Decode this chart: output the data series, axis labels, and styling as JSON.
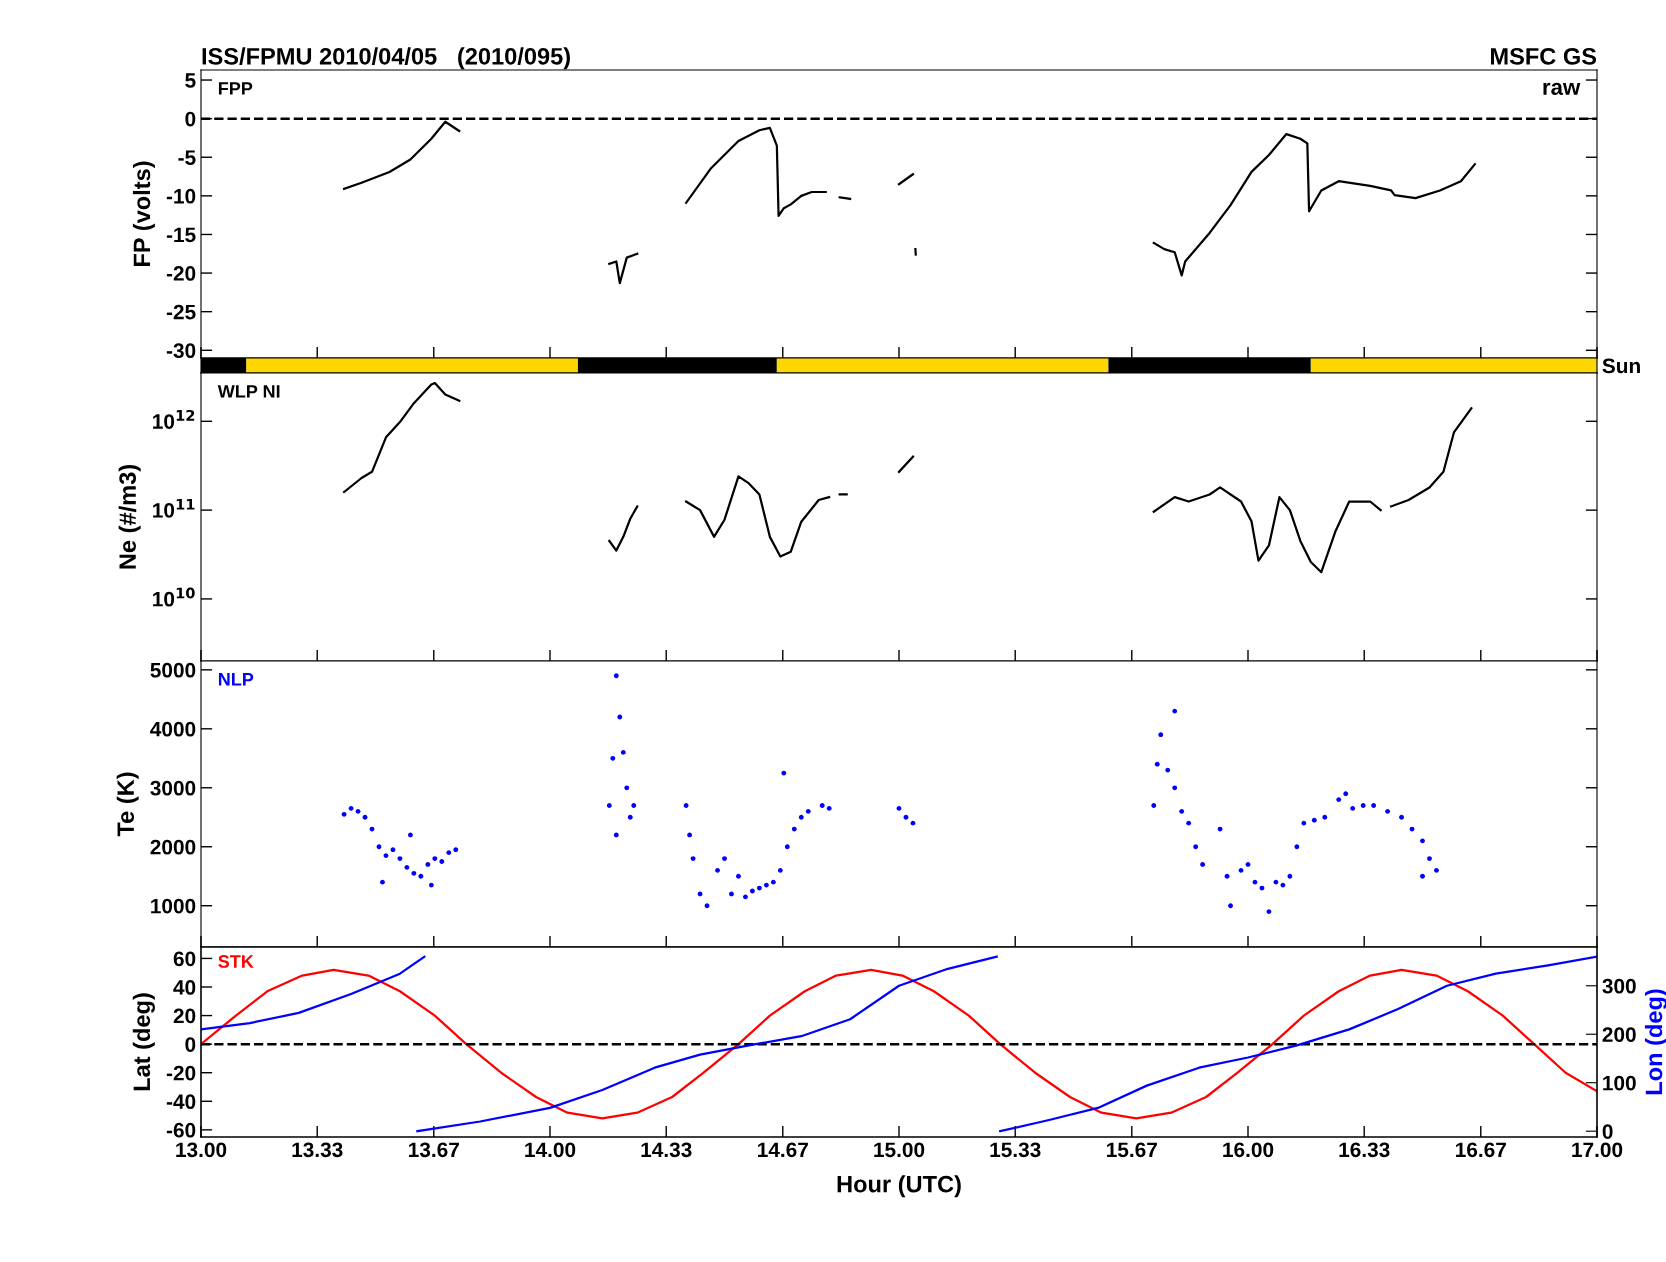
{
  "chart_data": [
    {
      "type": "line",
      "title": "ISS/FPMU 2010/04/05   (2010/095)",
      "subtitle": "MSFC GS",
      "ylabel": "FP (volts)",
      "annotations": [
        "FPP",
        "raw"
      ],
      "tick_labels": "y",
      "xlim": [
        13,
        17
      ],
      "xticks": [
        {
          "value": 13,
          "label": null
        },
        {
          "value": 13.333,
          "label": null
        },
        {
          "value": 13.667,
          "label": null
        },
        {
          "value": 14,
          "label": null
        },
        {
          "value": 14.333,
          "label": null
        },
        {
          "value": 14.667,
          "label": null
        },
        {
          "value": 15,
          "label": null
        },
        {
          "value": 15.333,
          "label": null
        },
        {
          "value": 15.667,
          "label": null
        },
        {
          "value": 16,
          "label": null
        },
        {
          "value": 16.333,
          "label": null
        },
        {
          "value": 16.667,
          "label": null
        },
        {
          "value": 17,
          "label": null
        }
      ],
      "ylim": [
        -31,
        6.3
      ],
      "yticks": [
        5,
        0,
        -5,
        -10,
        -15,
        -20,
        -25,
        -30
      ],
      "ref_lines": [
        {
          "axis": "y",
          "value": 0,
          "line_style": "dashed",
          "color": "#000000"
        }
      ],
      "series": [
        {
          "color": "#000000",
          "x": [
            13.41,
            13.46,
            13.54,
            13.6,
            13.66,
            13.7,
            13.74,
            14.0,
            14.17,
            14.19,
            14.2,
            14.22,
            14.25,
            14.3,
            14.39,
            14.46,
            14.54,
            14.6,
            14.63,
            14.65,
            14.655,
            14.67,
            14.69,
            14.72,
            14.75,
            14.79,
            14.81,
            14.83,
            14.86,
            14.9,
            15.0,
            15.04,
            15.046,
            15.047,
            15.048,
            15.5,
            15.73,
            15.76,
            15.79,
            15.81,
            15.82,
            15.89,
            15.95,
            16.01,
            16.06,
            16.11,
            16.15,
            16.17,
            16.175,
            16.21,
            16.26,
            16.35,
            16.41,
            16.42,
            16.48,
            16.55,
            16.61,
            16.65
          ],
          "values": [
            -9.1,
            -8.3,
            -6.9,
            -5.3,
            -2.6,
            -0.4,
            -1.6,
            null,
            -18.8,
            -18.5,
            -21.3,
            -18.0,
            -17.5,
            null,
            -10.9,
            -6.5,
            -2.9,
            -1.5,
            -1.2,
            -3.5,
            -12.6,
            -11.6,
            -11.1,
            -10.0,
            -9.5,
            -9.5,
            null,
            -10.2,
            -10.4,
            null,
            -8.5,
            -7.2,
            null,
            -16.9,
            -17.6,
            null,
            -16.1,
            -16.9,
            -17.3,
            -20.3,
            -18.5,
            -14.8,
            -11.2,
            -6.9,
            -4.7,
            -2.0,
            -2.6,
            -3.2,
            -12.0,
            -9.3,
            -8.1,
            -8.7,
            -9.3,
            -9.9,
            -10.3,
            -9.3,
            -8.1,
            -5.9
          ]
        }
      ]
    },
    {
      "type": "bar",
      "orientation": "horizontal",
      "categories": [
        "Sun"
      ],
      "tick_labels": "y",
      "xlim": [
        13,
        17
      ],
      "series": [
        {
          "color": "#000000",
          "base": [
            13.0
          ],
          "values": [
            0.13
          ]
        },
        {
          "color": "#ffd700",
          "base": [
            13.13
          ],
          "values": [
            0.95
          ]
        },
        {
          "color": "#000000",
          "base": [
            14.08
          ],
          "values": [
            0.57
          ]
        },
        {
          "color": "#ffd700",
          "base": [
            14.65
          ],
          "values": [
            0.95
          ]
        },
        {
          "color": "#000000",
          "base": [
            15.6
          ],
          "values": [
            0.58
          ]
        },
        {
          "color": "#ffd700",
          "base": [
            16.18
          ],
          "values": [
            0.82
          ]
        }
      ]
    },
    {
      "type": "line",
      "ylabel": "Ne (#/m3)",
      "annotations": [
        "WLP NI"
      ],
      "tick_labels": "y",
      "log": true,
      "xlim": [
        13,
        17
      ],
      "xticks": [
        {
          "value": 13,
          "label": null
        },
        {
          "value": 13.333,
          "label": null
        },
        {
          "value": 13.667,
          "label": null
        },
        {
          "value": 14,
          "label": null
        },
        {
          "value": 14.333,
          "label": null
        },
        {
          "value": 14.667,
          "label": null
        },
        {
          "value": 15,
          "label": null
        },
        {
          "value": 15.333,
          "label": null
        },
        {
          "value": 15.667,
          "label": null
        },
        {
          "value": 16,
          "label": null
        },
        {
          "value": 16.333,
          "label": null
        },
        {
          "value": 16.667,
          "label": null
        },
        {
          "value": 17,
          "label": null
        }
      ],
      "ylim": [
        2000000000.0,
        3500000000000.0
      ],
      "yticks": [
        {
          "value": 10000000000.0,
          "label": "10$^{10}$"
        },
        {
          "value": 100000000000.0,
          "label": "10$^{11}$"
        },
        {
          "value": 1000000000000.0,
          "label": "10$^{12}$"
        }
      ],
      "series": [
        {
          "color": "#000000",
          "x": [
            13.41,
            13.46,
            13.49,
            13.53,
            13.57,
            13.61,
            13.66,
            13.67,
            13.7,
            13.74,
            14.0,
            14.17,
            14.19,
            14.21,
            14.23,
            14.25,
            14.3,
            14.39,
            14.43,
            14.47,
            14.5,
            14.54,
            14.57,
            14.6,
            14.63,
            14.66,
            14.69,
            14.72,
            14.77,
            14.8,
            14.815,
            14.83,
            14.85,
            14.9,
            15.0,
            15.04,
            15.5,
            15.73,
            15.79,
            15.83,
            15.89,
            15.92,
            15.98,
            16.01,
            16.03,
            16.06,
            16.09,
            16.12,
            16.15,
            16.18,
            16.21,
            16.25,
            16.29,
            16.35,
            16.38,
            16.395,
            16.41,
            16.46,
            16.52,
            16.56,
            16.59,
            16.64
          ],
          "values": [
            160000000000.0,
            230000000000.0,
            270000000000.0,
            660000000000.0,
            980000000000.0,
            1600000000000.0,
            2600000000000.0,
            2700000000000.0,
            2000000000000.0,
            1700000000000.0,
            null,
            45000000000.0,
            35000000000.0,
            50000000000.0,
            80000000000.0,
            110000000000.0,
            null,
            125000000000.0,
            100000000000.0,
            50000000000.0,
            78000000000.0,
            240000000000.0,
            200000000000.0,
            150000000000.0,
            50000000000.0,
            30000000000.0,
            34000000000.0,
            74000000000.0,
            130000000000.0,
            140000000000.0,
            null,
            150000000000.0,
            150000000000.0,
            null,
            270000000000.0,
            400000000000.0,
            null,
            96000000000.0,
            140000000000.0,
            125000000000.0,
            150000000000.0,
            180000000000.0,
            125000000000.0,
            75000000000.0,
            27000000000.0,
            40000000000.0,
            140000000000.0,
            100000000000.0,
            45000000000.0,
            26000000000.0,
            20000000000.0,
            57000000000.0,
            125000000000.0,
            125000000000.0,
            100000000000.0,
            null,
            110000000000.0,
            130000000000.0,
            180000000000.0,
            270000000000.0,
            750000000000.0,
            1400000000000.0
          ]
        }
      ]
    },
    {
      "type": "scatter",
      "ylabel": "Te (K)",
      "annotations": [
        "NLP"
      ],
      "tick_labels": "y",
      "marker": "circle",
      "xlim": [
        13,
        17
      ],
      "xticks": [
        {
          "value": 13,
          "label": null
        },
        {
          "value": 13.333,
          "label": null
        },
        {
          "value": 13.667,
          "label": null
        },
        {
          "value": 14,
          "label": null
        },
        {
          "value": 14.333,
          "label": null
        },
        {
          "value": 14.667,
          "label": null
        },
        {
          "value": 15,
          "label": null
        },
        {
          "value": 15.333,
          "label": null
        },
        {
          "value": 15.667,
          "label": null
        },
        {
          "value": 16,
          "label": null
        },
        {
          "value": 16.333,
          "label": null
        },
        {
          "value": 16.667,
          "label": null
        },
        {
          "value": 17,
          "label": null
        }
      ],
      "ylim": [
        300,
        5150
      ],
      "yticks": [
        1000,
        2000,
        3000,
        4000,
        5000
      ],
      "series": [
        {
          "color": "#0000ff",
          "x": [
            13.41,
            13.43,
            13.45,
            13.47,
            13.49,
            13.51,
            13.53,
            13.55,
            13.57,
            13.59,
            13.61,
            13.63,
            13.65,
            13.67,
            13.69,
            13.71,
            13.73,
            13.52,
            13.6,
            13.66,
            14.17,
            14.18,
            14.19,
            14.2,
            14.21,
            14.22,
            14.23,
            14.24,
            14.19,
            14.39,
            14.4,
            14.41,
            14.43,
            14.45,
            14.48,
            14.5,
            14.52,
            14.54,
            14.56,
            14.58,
            14.6,
            14.62,
            14.64,
            14.66,
            14.68,
            14.7,
            14.72,
            14.74,
            14.78,
            14.8,
            14.67,
            15.0,
            15.02,
            15.04,
            15.73,
            15.74,
            15.75,
            15.77,
            15.79,
            15.81,
            15.83,
            15.85,
            15.87,
            15.79,
            15.92,
            15.94,
            15.95,
            15.98,
            16.0,
            16.02,
            16.04,
            16.06,
            16.08,
            16.1,
            16.12,
            16.14,
            16.16,
            16.19,
            16.22,
            16.26,
            16.28,
            16.3,
            16.33,
            16.36,
            16.4,
            16.44,
            16.47,
            16.5,
            16.52,
            16.54,
            16.5
          ],
          "values": [
            2550,
            2650,
            2600,
            2500,
            2300,
            2000,
            1850,
            1950,
            1800,
            1650,
            1550,
            1500,
            1700,
            1800,
            1750,
            1900,
            1950,
            1400,
            2200,
            1350,
            2700,
            3500,
            4900,
            4200,
            3600,
            3000,
            2500,
            2700,
            2200,
            2700,
            2200,
            1800,
            1200,
            1000,
            1600,
            1800,
            1200,
            1500,
            1150,
            1250,
            1300,
            1350,
            1400,
            1600,
            2000,
            2300,
            2500,
            2600,
            2700,
            2650,
            3250,
            2650,
            2500,
            2400,
            2700,
            3400,
            3900,
            3300,
            3000,
            2600,
            2400,
            2000,
            1700,
            4300,
            2300,
            1500,
            1000,
            1600,
            1700,
            1400,
            1300,
            900,
            1400,
            1350,
            1500,
            2000,
            2400,
            2450,
            2500,
            2800,
            2900,
            2650,
            2700,
            2700,
            2600,
            2500,
            2300,
            2100,
            1800,
            1600,
            1500
          ]
        }
      ]
    },
    {
      "type": "line",
      "xlabel": "Hour (UTC)",
      "ylabel": "Lat (deg)",
      "y2label": "Lon (deg)",
      "annotations": [
        "STK"
      ],
      "xlim": [
        13,
        17
      ],
      "xticks": [
        {
          "value": 13,
          "label": "13.00"
        },
        {
          "value": 13.333,
          "label": "13.33"
        },
        {
          "value": 13.667,
          "label": "13.67"
        },
        {
          "value": 14,
          "label": "14.00"
        },
        {
          "value": 14.333,
          "label": "14.33"
        },
        {
          "value": 14.667,
          "label": "14.67"
        },
        {
          "value": 15,
          "label": "15.00"
        },
        {
          "value": 15.333,
          "label": "15.33"
        },
        {
          "value": 15.667,
          "label": "15.67"
        },
        {
          "value": 16,
          "label": "16.00"
        },
        {
          "value": 16.333,
          "label": "16.33"
        },
        {
          "value": 16.667,
          "label": "16.67"
        },
        {
          "value": 17,
          "label": "17.00"
        }
      ],
      "ylim": [
        -65,
        68
      ],
      "yticks": [
        60,
        40,
        20,
        0,
        -20,
        -40,
        -60
      ],
      "y2lim": [
        -12,
        380
      ],
      "y2ticks": [
        0,
        100,
        200,
        300
      ],
      "ref_lines": [
        {
          "axis": "y",
          "value": 0,
          "line_style": "dashed",
          "color": "#000000"
        }
      ],
      "series": [
        {
          "color": "#ff0000",
          "x": [
            13.0,
            13.1,
            13.19,
            13.29,
            13.38,
            13.48,
            13.57,
            13.67,
            13.76,
            13.86,
            13.96,
            14.05,
            14.15,
            14.25,
            14.35,
            14.44,
            14.54,
            14.63,
            14.73,
            14.82,
            14.92,
            15.01,
            15.1,
            15.2,
            15.29,
            15.39,
            15.49,
            15.58,
            15.68,
            15.78,
            15.88,
            15.97,
            16.07,
            16.16,
            16.26,
            16.35,
            16.44,
            16.54,
            16.63,
            16.73,
            16.82,
            16.91,
            17.0
          ],
          "values": [
            0,
            20,
            37,
            48,
            52,
            48,
            37,
            20,
            0,
            -20,
            -37,
            -48,
            -52,
            -48,
            -37,
            -20,
            0,
            20,
            37,
            48,
            52,
            48,
            37,
            20,
            0,
            -20,
            -37,
            -48,
            -52,
            -48,
            -37,
            -20,
            0,
            20,
            37,
            48,
            52,
            48,
            37,
            20,
            0,
            -20,
            -33
          ]
        },
        {
          "color": "#0000ff",
          "axis": "y2",
          "x": [
            13.0,
            13.14,
            13.28,
            13.43,
            13.57,
            13.64
          ],
          "values": [
            210,
            223,
            244,
            283,
            325,
            360
          ]
        },
        {
          "color": "#0000ff",
          "axis": "y2",
          "x": [
            13.62,
            13.8,
            14.0,
            14.15,
            14.3,
            14.43,
            14.57,
            14.72,
            14.86,
            15.0,
            15.14,
            15.28
          ],
          "values": [
            0,
            20,
            48,
            85,
            131,
            158,
            177,
            196,
            231,
            300,
            335,
            360
          ]
        },
        {
          "color": "#0000ff",
          "axis": "y2",
          "x": [
            15.29,
            15.43,
            15.57,
            15.71,
            15.86,
            16.0,
            16.14,
            16.29,
            16.43,
            16.57,
            16.71,
            16.86,
            17.0
          ],
          "values": [
            0,
            23,
            48,
            94,
            131,
            152,
            177,
            210,
            252,
            300,
            325,
            342,
            360
          ]
        }
      ]
    }
  ]
}
